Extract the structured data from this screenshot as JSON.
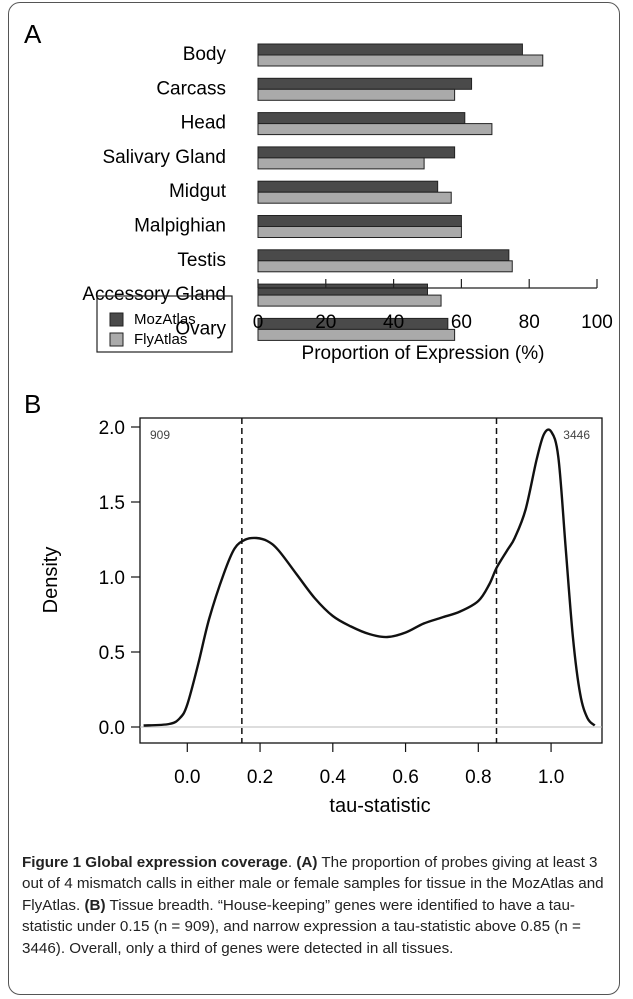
{
  "panel_labels": {
    "a": "A",
    "b": "B"
  },
  "colors": {
    "mozatlas": "#4a4a4a",
    "flyatlas": "#aaaaaa",
    "curve": "#111111",
    "baseline": "#bbbbbb"
  },
  "chart_data": [
    {
      "type": "bar",
      "orientation": "horizontal",
      "categories": [
        "Body",
        "Carcass",
        "Head",
        "Salivary Gland",
        "Midgut",
        "Malpighian",
        "Testis",
        "Accessory Gland",
        "Ovary"
      ],
      "series": [
        {
          "name": "MozAtlas",
          "values": [
            78,
            63,
            61,
            58,
            53,
            60,
            74,
            50,
            56
          ]
        },
        {
          "name": "FlyAtlas",
          "values": [
            84,
            58,
            69,
            49,
            57,
            60,
            75,
            54,
            58
          ]
        }
      ],
      "xlabel": "Proportion of Expression (%)",
      "xticks": [
        "0",
        "20",
        "40",
        "60",
        "80",
        "100"
      ],
      "xlim": [
        0,
        100
      ],
      "legend": "bottom-left"
    },
    {
      "type": "line",
      "xlabel": "tau-statistic",
      "ylabel": "Density",
      "xticks": [
        "0.0",
        "0.2",
        "0.4",
        "0.6",
        "0.8",
        "1.0"
      ],
      "yticks": [
        "0.0",
        "0.5",
        "1.0",
        "1.5",
        "2.0"
      ],
      "xlim": [
        -0.13,
        1.14
      ],
      "ylim": [
        0,
        2.0
      ],
      "x": [
        -0.12,
        -0.05,
        -0.02,
        0.0,
        0.03,
        0.06,
        0.1,
        0.13,
        0.16,
        0.19,
        0.22,
        0.25,
        0.3,
        0.35,
        0.4,
        0.45,
        0.5,
        0.55,
        0.6,
        0.65,
        0.7,
        0.75,
        0.8,
        0.83,
        0.85,
        0.88,
        0.9,
        0.93,
        0.96,
        0.98,
        1.0,
        1.02,
        1.04,
        1.06,
        1.08,
        1.1,
        1.12
      ],
      "y": [
        0.01,
        0.02,
        0.06,
        0.15,
        0.42,
        0.72,
        1.02,
        1.19,
        1.25,
        1.26,
        1.24,
        1.18,
        1.02,
        0.86,
        0.74,
        0.67,
        0.62,
        0.6,
        0.63,
        0.69,
        0.73,
        0.77,
        0.84,
        0.95,
        1.06,
        1.18,
        1.26,
        1.45,
        1.78,
        1.95,
        1.97,
        1.8,
        1.2,
        0.6,
        0.22,
        0.06,
        0.01
      ],
      "vlines": [
        0.15,
        0.85
      ],
      "annotations": [
        {
          "text": "909",
          "position": "top-left"
        },
        {
          "text": "3446",
          "position": "top-right"
        }
      ]
    }
  ],
  "caption": {
    "figure_label": "Figure 1 Global expression coverage",
    "line1_rest": ". ",
    "a_tag": "(A)",
    "a_text": " The proportion of probes giving at least 3 out of 4 mismatch calls in either male or female samples for tissue in the MozAtlas and FlyAtlas. ",
    "b_tag": "(B)",
    "b_text": " Tissue breadth. “House-keeping” genes were identified to have a tau-statistic under 0.15 (n = 909), and narrow expression a tau-statistic above 0.85 (n = 3446). Overall, only a third of genes were detected in all tissues."
  }
}
